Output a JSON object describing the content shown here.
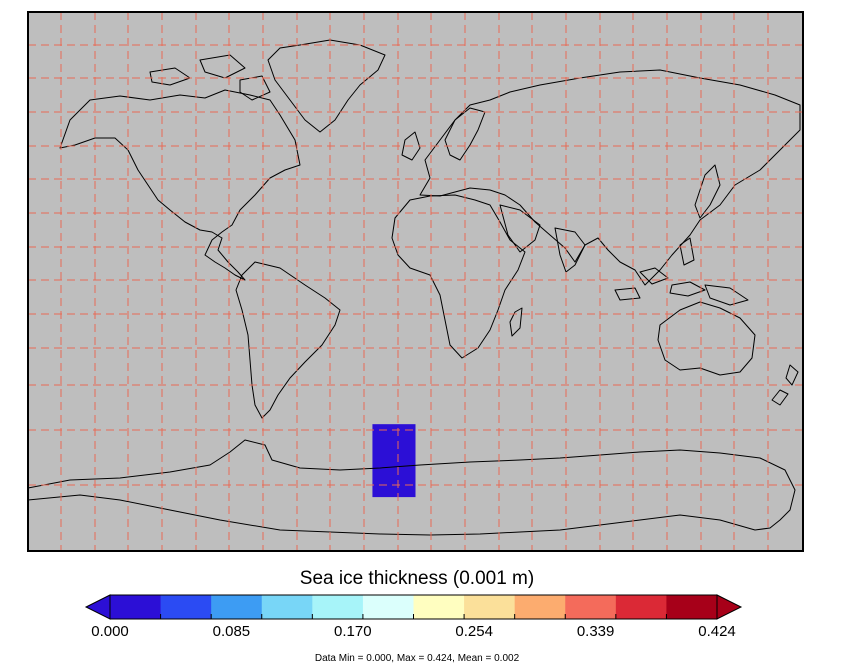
{
  "map": {
    "background_color": "#bebebe",
    "grid_color": "#e86a55",
    "grid_style": "dashed",
    "coastline_color": "#000000",
    "field": {
      "name": "Sea ice thickness",
      "region": {
        "lon_min": -20,
        "lon_max": 0,
        "lat_min": -68,
        "lat_max": -45
      },
      "dominant_value": 0.0,
      "dominant_color": "#2c0fd6"
    }
  },
  "colorbar": {
    "title": "Sea ice thickness (0.001 m)",
    "tick_labels": [
      "0.000",
      "0.085",
      "0.170",
      "0.254",
      "0.339",
      "0.424"
    ],
    "colors": [
      "#2c0fd6",
      "#2b4bf3",
      "#3d9cf3",
      "#78d6f7",
      "#a7f4f9",
      "#dbfffc",
      "#fffec0",
      "#fbe09a",
      "#fcac6f",
      "#f46b5b",
      "#db2936",
      "#a70019"
    ],
    "min_extend_color": "#2c0fd6",
    "max_extend_color": "#a70019",
    "extend": "both"
  },
  "footer": {
    "stats": "Data Min = 0.000, Max = 0.424, Mean = 0.002"
  }
}
